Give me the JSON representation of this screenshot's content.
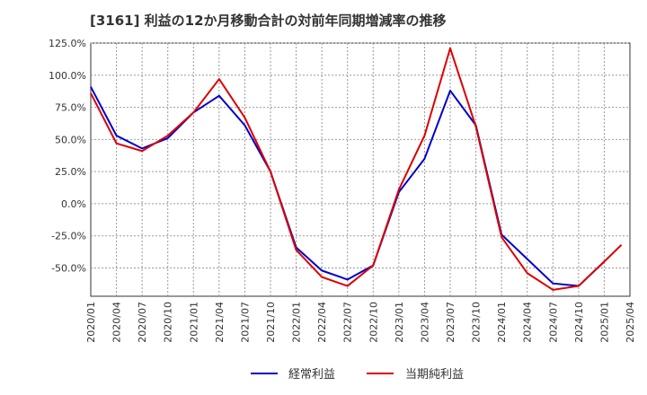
{
  "chart_data": {
    "type": "line",
    "title": "[3161]  利益の12か月移動合計の対前年同期増減率の推移",
    "xlabel": "",
    "ylabel": "",
    "ylim": [
      -72,
      125
    ],
    "yticks": [
      125,
      100,
      75,
      50,
      25,
      0,
      -25,
      -50
    ],
    "ytick_labels": [
      "125.0%",
      "100.0%",
      "75.0%",
      "50.0%",
      "25.0%",
      "0.0%",
      "-25.0%",
      "-50.0%"
    ],
    "x_tick_labels": [
      "2020/01",
      "2020/04",
      "2020/07",
      "2020/10",
      "2021/01",
      "2021/04",
      "2021/07",
      "2021/10",
      "2022/01",
      "2022/04",
      "2022/07",
      "2022/10",
      "2023/01",
      "2023/04",
      "2023/07",
      "2023/10",
      "2024/01",
      "2024/04",
      "2024/07",
      "2024/10",
      "2025/01",
      "2025/04"
    ],
    "grid": true,
    "legend_position": "bottom",
    "series": [
      {
        "name": "経常利益",
        "color": "#0000cc",
        "x": [
          0,
          1,
          2,
          3,
          4,
          5,
          6,
          7,
          8,
          9,
          10,
          11,
          12,
          13,
          14,
          15,
          16,
          17,
          18,
          19,
          20
        ],
        "values": [
          91,
          53,
          43,
          51,
          71,
          84,
          61,
          25,
          -34,
          -52,
          -59,
          -48,
          9,
          35,
          88,
          61,
          -24,
          -43,
          -62,
          -64,
          -45
        ]
      },
      {
        "name": "当期純利益",
        "color": "#dd0000",
        "x": [
          0,
          1,
          2,
          3,
          4,
          5,
          6,
          7,
          8,
          9,
          10,
          11,
          12,
          13,
          14,
          15,
          16,
          17,
          18,
          19,
          20,
          20.67
        ],
        "values": [
          86,
          47,
          41,
          53,
          71,
          97,
          67,
          25,
          -36,
          -57,
          -64,
          -48,
          11,
          53,
          121,
          60,
          -26,
          -54,
          -67,
          -64,
          -45,
          -32
        ]
      }
    ]
  }
}
